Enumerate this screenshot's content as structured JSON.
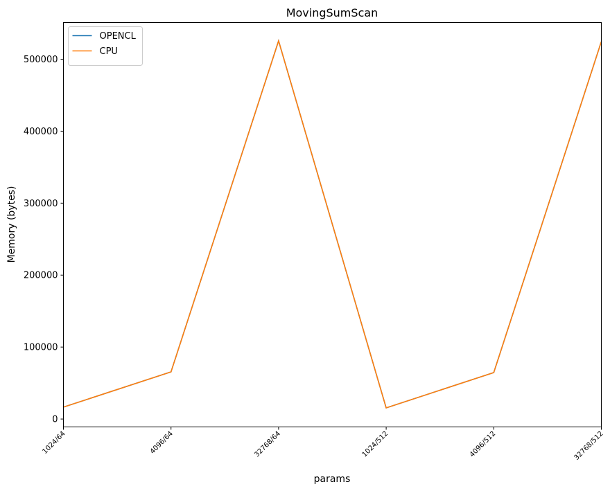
{
  "chart_data": {
    "type": "line",
    "title": "MovingSumScan",
    "xlabel": "params",
    "ylabel": "Memory (bytes)",
    "categories": [
      "1024/64",
      "4096/64",
      "32768/64",
      "1024/512",
      "4096/512",
      "32768/512"
    ],
    "yticks": [
      0,
      100000,
      200000,
      300000,
      400000,
      500000
    ],
    "ytick_labels": [
      "0",
      "100000",
      "200000",
      "300000",
      "400000",
      "500000"
    ],
    "ylim": [
      -11000,
      551000
    ],
    "grid": false,
    "legend_position": "top-left",
    "series": [
      {
        "name": "OPENCL",
        "color": "#1f77b4",
        "values": [
          16500,
          65500,
          525500,
          15500,
          64500,
          524500
        ]
      },
      {
        "name": "CPU",
        "color": "#ff7f0e",
        "values": [
          16500,
          65500,
          525500,
          15500,
          64500,
          524500
        ]
      }
    ]
  }
}
